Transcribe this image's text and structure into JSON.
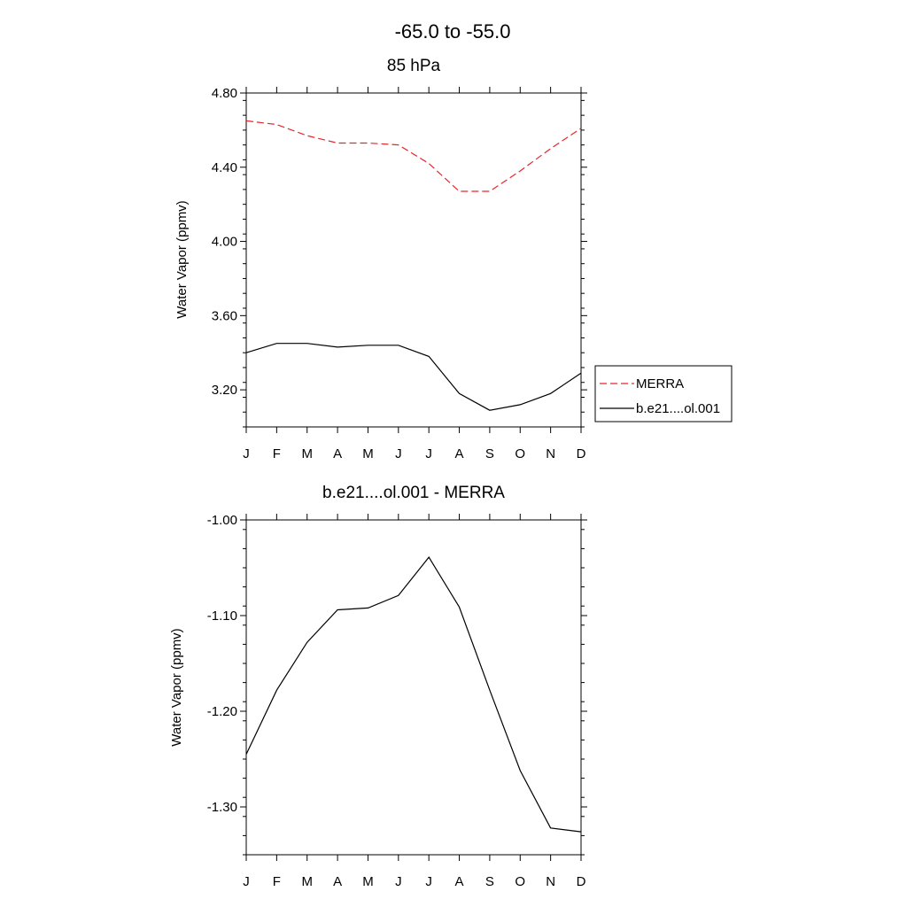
{
  "figure": {
    "title": "-65.0 to -55.0"
  },
  "chart_data": [
    {
      "type": "line",
      "title": "85 hPa",
      "xlabel": "",
      "ylabel": "Water Vapor (ppmv)",
      "categories": [
        "J",
        "F",
        "M",
        "A",
        "M",
        "J",
        "J",
        "A",
        "S",
        "O",
        "N",
        "D"
      ],
      "ylim": [
        3.0,
        4.8
      ],
      "yticks": [
        "3.20",
        "3.60",
        "4.00",
        "4.40",
        "4.80"
      ],
      "grid": false,
      "legend": "right",
      "series": [
        {
          "name": "MERRA",
          "color": "#e8262b",
          "dash": "dashed",
          "values": [
            4.65,
            4.63,
            4.57,
            4.53,
            4.53,
            4.52,
            4.42,
            4.27,
            4.27,
            4.38,
            4.5,
            4.61
          ]
        },
        {
          "name": "b.e21....ol.001",
          "color": "#000000",
          "dash": "solid",
          "values": [
            3.4,
            3.45,
            3.45,
            3.43,
            3.44,
            3.44,
            3.38,
            3.18,
            3.09,
            3.12,
            3.18,
            3.29
          ]
        }
      ]
    },
    {
      "type": "line",
      "title": "b.e21....ol.001 - MERRA",
      "xlabel": "",
      "ylabel": "Water Vapor (ppmv)",
      "categories": [
        "J",
        "F",
        "M",
        "A",
        "M",
        "J",
        "J",
        "A",
        "S",
        "O",
        "N",
        "D"
      ],
      "ylim": [
        -1.35,
        -1.0
      ],
      "yticks": [
        "-1.30",
        "-1.20",
        "-1.10",
        "-1.00"
      ],
      "grid": false,
      "series": [
        {
          "color": "#000000",
          "dash": "solid",
          "values": [
            -1.245,
            -1.178,
            -1.128,
            -1.094,
            -1.092,
            -1.079,
            -1.039,
            -1.091,
            -1.178,
            -1.262,
            -1.322,
            -1.326
          ]
        }
      ]
    }
  ]
}
